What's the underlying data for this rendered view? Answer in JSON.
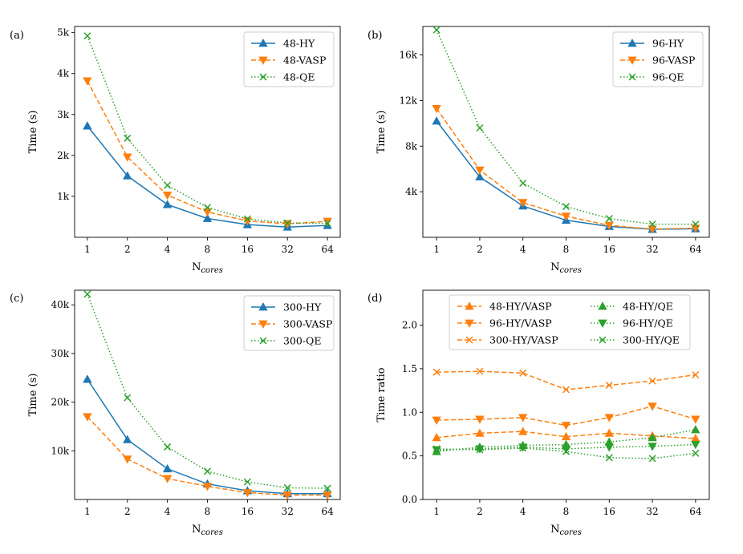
{
  "x_axis": {
    "categories": [
      "1",
      "2",
      "4",
      "8",
      "16",
      "32",
      "64"
    ],
    "label_main": "N",
    "label_sub": "cores"
  },
  "chart_data": [
    {
      "type": "line",
      "panel_label": "(a)",
      "ylabel": "Time (s)",
      "ylim": [
        0,
        5150
      ],
      "yticks": [
        {
          "value": 1000,
          "label": "1k"
        },
        {
          "value": 2000,
          "label": "2k"
        },
        {
          "value": 3000,
          "label": "3k"
        },
        {
          "value": 4000,
          "label": "4k"
        },
        {
          "value": 5000,
          "label": "5k"
        }
      ],
      "legend_position": "top-right",
      "series": [
        {
          "name": "48-HY",
          "color": "#1f77b4",
          "marker": "triangle-up",
          "dash": "solid",
          "values": [
            2720,
            1500,
            800,
            460,
            310,
            250,
            290
          ]
        },
        {
          "name": "48-VASP",
          "color": "#ff7f0e",
          "marker": "triangle-down",
          "dash": "dashed",
          "values": [
            3820,
            1960,
            1030,
            620,
            400,
            330,
            390
          ]
        },
        {
          "name": "48-QE",
          "color": "#2ca02c",
          "marker": "x",
          "dash": "dotted",
          "values": [
            4920,
            2420,
            1270,
            730,
            450,
            350,
            340
          ]
        }
      ]
    },
    {
      "type": "line",
      "panel_label": "(b)",
      "ylabel": "Time (s)",
      "ylim": [
        0,
        18500
      ],
      "yticks": [
        {
          "value": 4000,
          "label": "4k"
        },
        {
          "value": 8000,
          "label": "8k"
        },
        {
          "value": 12000,
          "label": "12k"
        },
        {
          "value": 16000,
          "label": "16k"
        }
      ],
      "legend_position": "top-right",
      "series": [
        {
          "name": "96-HY",
          "color": "#1f77b4",
          "marker": "triangle-up",
          "dash": "solid",
          "values": [
            10200,
            5300,
            2750,
            1500,
            950,
            700,
            750
          ]
        },
        {
          "name": "96-VASP",
          "color": "#ff7f0e",
          "marker": "triangle-down",
          "dash": "dashed",
          "values": [
            11300,
            5900,
            3050,
            1850,
            1050,
            720,
            800
          ]
        },
        {
          "name": "96-QE",
          "color": "#2ca02c",
          "marker": "x",
          "dash": "dotted",
          "values": [
            18200,
            9600,
            4750,
            2700,
            1650,
            1150,
            1150
          ]
        }
      ]
    },
    {
      "type": "line",
      "panel_label": "(c)",
      "ylabel": "Time (s)",
      "ylim": [
        0,
        43000
      ],
      "yticks": [
        {
          "value": 10000,
          "label": "10k"
        },
        {
          "value": 20000,
          "label": "20k"
        },
        {
          "value": 30000,
          "label": "30k"
        },
        {
          "value": 40000,
          "label": "40k"
        }
      ],
      "legend_position": "top-right",
      "series": [
        {
          "name": "300-HY",
          "color": "#1f77b4",
          "marker": "triangle-up",
          "dash": "solid",
          "values": [
            24700,
            12300,
            6300,
            3200,
            1800,
            1200,
            1200
          ]
        },
        {
          "name": "300-VASP",
          "color": "#ff7f0e",
          "marker": "triangle-down",
          "dash": "dashed",
          "values": [
            17000,
            8300,
            4300,
            2700,
            1400,
            900,
            900
          ]
        },
        {
          "name": "300-QE",
          "color": "#2ca02c",
          "marker": "x",
          "dash": "dotted",
          "values": [
            42200,
            20900,
            10800,
            5800,
            3600,
            2400,
            2300
          ]
        }
      ]
    },
    {
      "type": "line",
      "panel_label": "(d)",
      "ylabel": "Time ratio",
      "ylim": [
        0.0,
        2.4
      ],
      "yticks": [
        {
          "value": 0.0,
          "label": "0.0"
        },
        {
          "value": 0.5,
          "label": "0.5"
        },
        {
          "value": 1.0,
          "label": "1.0"
        },
        {
          "value": 1.5,
          "label": "1.5"
        },
        {
          "value": 2.0,
          "label": "2.0"
        }
      ],
      "legend_position": "top",
      "legend_columns": 2,
      "series": [
        {
          "name": "48-HY/VASP",
          "color": "#ff7f0e",
          "marker": "triangle-up",
          "dash": "dashed",
          "values": [
            0.71,
            0.76,
            0.78,
            0.72,
            0.76,
            0.73,
            0.7
          ]
        },
        {
          "name": "96-HY/VASP",
          "color": "#ff7f0e",
          "marker": "triangle-down",
          "dash": "dashed",
          "values": [
            0.91,
            0.92,
            0.94,
            0.85,
            0.94,
            1.07,
            0.92
          ]
        },
        {
          "name": "300-HY/VASP",
          "color": "#ff7f0e",
          "marker": "x",
          "dash": "dashed",
          "values": [
            1.46,
            1.47,
            1.45,
            1.26,
            1.31,
            1.36,
            1.43
          ]
        },
        {
          "name": "48-HY/QE",
          "color": "#2ca02c",
          "marker": "triangle-up",
          "dash": "dotted",
          "values": [
            0.55,
            0.6,
            0.62,
            0.63,
            0.66,
            0.71,
            0.8
          ]
        },
        {
          "name": "96-HY/QE",
          "color": "#2ca02c",
          "marker": "triangle-down",
          "dash": "dotted",
          "values": [
            0.57,
            0.58,
            0.6,
            0.58,
            0.6,
            0.61,
            0.63
          ]
        },
        {
          "name": "300-HY/QE",
          "color": "#2ca02c",
          "marker": "x",
          "dash": "dotted",
          "values": [
            0.58,
            0.57,
            0.59,
            0.55,
            0.48,
            0.47,
            0.53
          ]
        }
      ]
    }
  ]
}
